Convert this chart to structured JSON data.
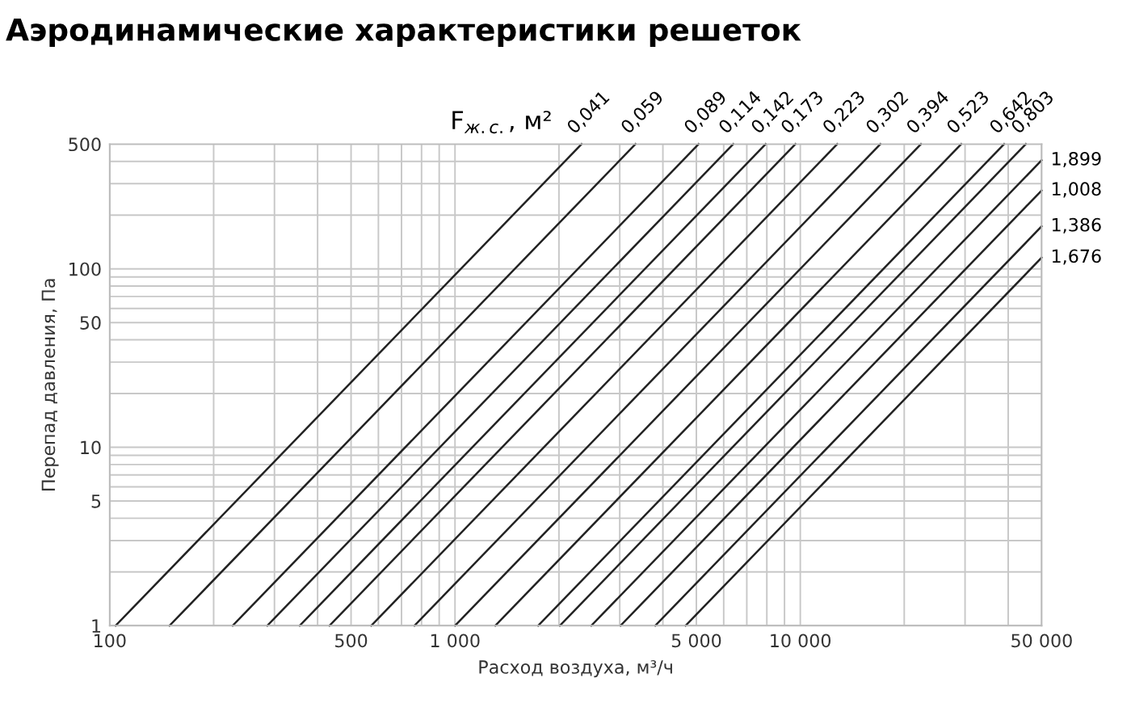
{
  "chart_data": {
    "type": "line",
    "title": "Аэродинамические характеристики решеток",
    "xlabel": "Расход воздуха, м³/ч",
    "ylabel": "Перепад давления, Па",
    "log": "xy",
    "grid": true,
    "legend": false,
    "marker": "none",
    "line_style": "solid",
    "xlim": [
      100,
      50000
    ],
    "ylim": [
      1,
      500
    ],
    "xticks": [
      100,
      500,
      {
        "value": 1000,
        "label": "1 000"
      },
      {
        "value": 5000,
        "label": "5 000"
      },
      {
        "value": 10000,
        "label": "10 000"
      },
      {
        "value": 50000,
        "label": "50 000"
      }
    ],
    "yticks": [
      1,
      5,
      10,
      50,
      100,
      500
    ],
    "annotations": [
      "F$_{ж.с.}$, м²"
    ],
    "series": [
      {
        "name": "0,041",
        "color": "#222222",
        "x": [
          104,
          2326
        ],
        "values": [
          1,
          500
        ]
      },
      {
        "name": "0,059",
        "color": "#222222",
        "x": [
          149,
          3332
        ],
        "values": [
          1,
          500
        ]
      },
      {
        "name": "0,089",
        "color": "#222222",
        "x": [
          227,
          5076
        ],
        "values": [
          1,
          500
        ]
      },
      {
        "name": "0,114",
        "color": "#222222",
        "x": [
          286,
          6395
        ],
        "values": [
          1,
          500
        ]
      },
      {
        "name": "0,142",
        "color": "#222222",
        "x": [
          355,
          7938
        ],
        "values": [
          1,
          500
        ]
      },
      {
        "name": "0,173",
        "color": "#222222",
        "x": [
          433,
          9682
        ],
        "values": [
          1,
          500
        ]
      },
      {
        "name": "0,223",
        "color": "#222222",
        "x": [
          572,
          12790
        ],
        "values": [
          1,
          500
        ]
      },
      {
        "name": "0,302",
        "color": "#222222",
        "x": [
          763,
          17061
        ],
        "values": [
          1,
          500
        ]
      },
      {
        "name": "0,394",
        "color": "#222222",
        "x": [
          1000,
          22361
        ],
        "values": [
          1,
          500
        ]
      },
      {
        "name": "0,523",
        "color": "#222222",
        "x": [
          1308,
          29248
        ],
        "values": [
          1,
          500
        ]
      },
      {
        "name": "0,642",
        "color": "#222222",
        "x": [
          1741,
          38930
        ],
        "values": [
          1,
          500
        ]
      },
      {
        "name": "0,803",
        "color": "#222222",
        "x": [
          2012,
          44990
        ],
        "values": [
          1,
          500
        ]
      },
      {
        "name": "1,899",
        "color": "#222222",
        "x": [
          2481,
          50000
        ],
        "values": [
          1,
          406
        ]
      },
      {
        "name": "1,008",
        "color": "#222222",
        "x": [
          3015,
          50000
        ],
        "values": [
          1,
          275
        ]
      },
      {
        "name": "1,386",
        "color": "#222222",
        "x": [
          3801,
          50000
        ],
        "values": [
          1,
          173
        ]
      },
      {
        "name": "1,676",
        "color": "#222222",
        "x": [
          4652,
          50000
        ],
        "values": [
          1,
          115.5
        ]
      }
    ]
  }
}
